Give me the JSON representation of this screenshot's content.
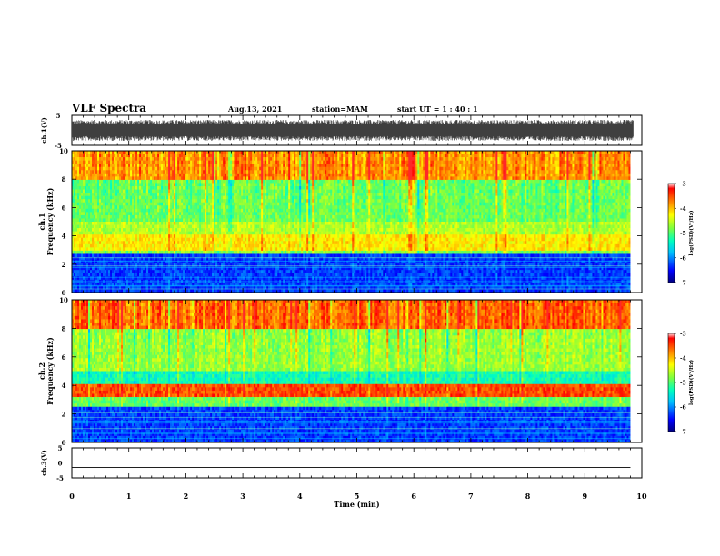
{
  "header": {
    "title": "VLF Spectra",
    "date": "Aug.13, 2021",
    "station": "station=MAM",
    "start": "start  UT =   1 : 40 : 1"
  },
  "chart_data": [
    {
      "type": "line",
      "name": "ch1-waveform",
      "ylabel": "ch.1(V)",
      "ylim": [
        -5,
        5
      ],
      "yticks": [
        "5",
        "-5"
      ],
      "xlim": [
        0,
        10
      ],
      "description_values": {
        "trace_min": -3.5,
        "trace_max": 3.5,
        "trace_end_min": 9.85
      }
    },
    {
      "type": "heatmap",
      "name": "ch1-spectrogram",
      "ylabel": "ch.1\nFrequency (kHz)",
      "ylim": [
        0,
        10
      ],
      "yticks": [
        "0",
        "2",
        "4",
        "6",
        "8",
        "10"
      ],
      "xlim": [
        0,
        10
      ],
      "data_end_min": 9.8,
      "colorbar": {
        "label": "log(PSD)(V²/Hz)",
        "range": [
          -7,
          -3
        ],
        "ticks": [
          "-3",
          "-4",
          "-5",
          "-6",
          "-7"
        ]
      },
      "bands": [
        {
          "from_khz": 0,
          "to_khz": 2.7,
          "log_psd": -6.3,
          "note": "dark blue, horizontal lines"
        },
        {
          "from_khz": 2.7,
          "to_khz": 2.9,
          "log_psd": -4.8
        },
        {
          "from_khz": 2.9,
          "to_khz": 4.0,
          "log_psd": -4.2
        },
        {
          "from_khz": 4.0,
          "to_khz": 5.0,
          "log_psd": -4.6
        },
        {
          "from_khz": 5.0,
          "to_khz": 8.0,
          "log_psd": -4.9
        },
        {
          "from_khz": 8.0,
          "to_khz": 10.0,
          "log_psd": -3.8
        }
      ]
    },
    {
      "type": "heatmap",
      "name": "ch2-spectrogram",
      "ylabel": "ch.2\nFrequency (kHz)",
      "ylim": [
        0,
        10
      ],
      "yticks": [
        "0",
        "2",
        "4",
        "6",
        "8",
        "10"
      ],
      "xlim": [
        0,
        10
      ],
      "data_end_min": 9.8,
      "colorbar": {
        "label": "log(PSD)(V²/Hz)",
        "range": [
          -7,
          -3
        ],
        "ticks": [
          "-3",
          "-4",
          "-5",
          "-6",
          "-7"
        ]
      },
      "bands": [
        {
          "from_khz": 0,
          "to_khz": 2.5,
          "log_psd": -6.3,
          "note": "dark blue, horizontal lines"
        },
        {
          "from_khz": 2.5,
          "to_khz": 3.2,
          "log_psd": -4.9
        },
        {
          "from_khz": 3.2,
          "to_khz": 4.2,
          "log_psd": -3.5
        },
        {
          "from_khz": 4.2,
          "to_khz": 5.0,
          "log_psd": -5.3
        },
        {
          "from_khz": 5.0,
          "to_khz": 8.0,
          "log_psd": -4.7
        },
        {
          "from_khz": 8.0,
          "to_khz": 10.0,
          "log_psd": -3.6
        }
      ]
    },
    {
      "type": "line",
      "name": "ch3-waveform",
      "ylabel": "ch.3(V)",
      "ylim": [
        -5,
        5
      ],
      "yticks": [
        "5",
        "0",
        "-5"
      ],
      "xlim": [
        0,
        10
      ],
      "xlabel": "Time (min)",
      "xticks": [
        "0",
        "1",
        "2",
        "3",
        "4",
        "5",
        "6",
        "7",
        "8",
        "9",
        "10"
      ],
      "series": [
        {
          "values_const": -1.5,
          "x_end": 9.8
        }
      ]
    }
  ],
  "colors": {
    "spectrogram_scale": [
      "#00007f",
      "#0000ff",
      "#007fff",
      "#00ffff",
      "#7fff7f",
      "#ffff00",
      "#ff7f00",
      "#ff0000",
      "#7f0000"
    ]
  }
}
